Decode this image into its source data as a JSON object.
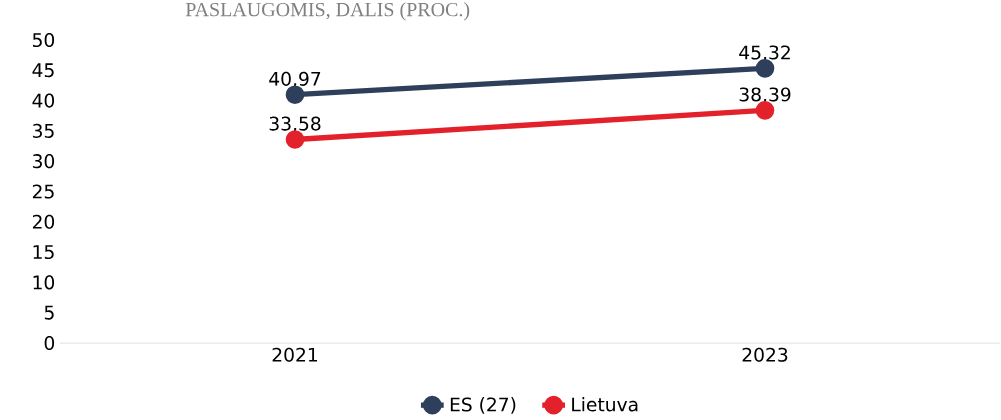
{
  "chart_data": {
    "type": "line",
    "title": "PASLAUGOMIS, DALIS (PROC.)",
    "categories": [
      "2021",
      "2023"
    ],
    "series": [
      {
        "name": "ES (27)",
        "color": "#2e3f5c",
        "values": [
          40.97,
          45.32
        ],
        "value_labels": [
          "40,97",
          "45,32"
        ]
      },
      {
        "name": "Lietuva",
        "color": "#e3212b",
        "values": [
          33.58,
          38.39
        ],
        "value_labels": [
          "33,58",
          "38,39"
        ]
      }
    ],
    "ylim": [
      0,
      50
    ],
    "yticks": [
      0,
      5,
      10,
      15,
      20,
      25,
      30,
      35,
      40,
      45,
      50
    ],
    "grid": false,
    "legend": "bottom",
    "marker": "circle",
    "line_style": "solid"
  }
}
